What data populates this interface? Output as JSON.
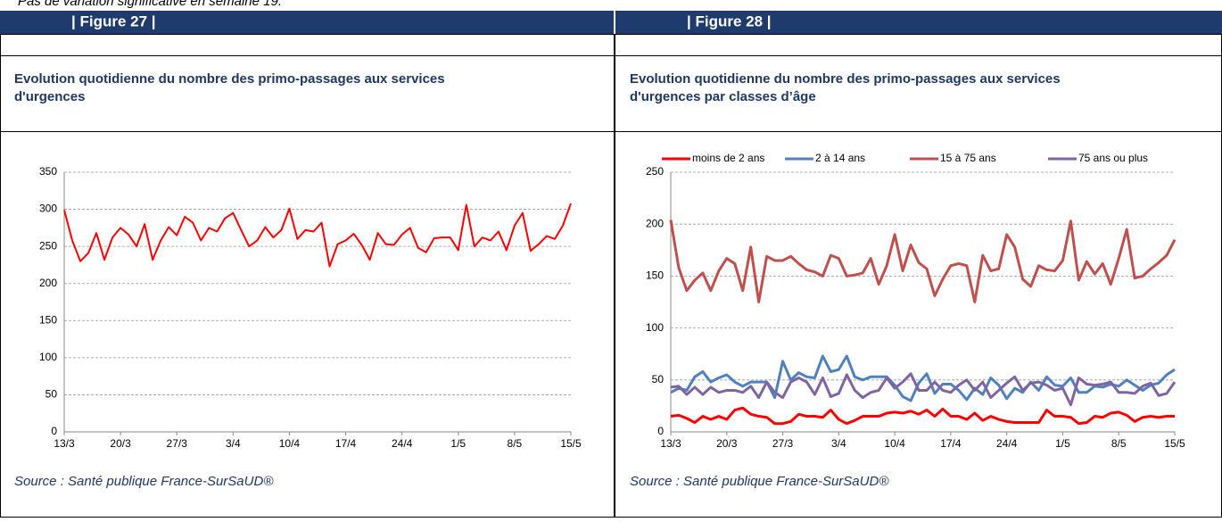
{
  "header_text": "Pas de variation significative en semaine 19.",
  "chart_data": [
    {
      "type": "line",
      "figure_label": "| Figure 27 |",
      "title": [
        "Evolution quotidienne du nombre des primo-passages aux services",
        "d'urgences"
      ],
      "source": "Source : Santé publique France-SurSaUD®",
      "categories": [
        "13/3",
        null,
        null,
        null,
        null,
        null,
        null,
        "20/3",
        null,
        null,
        null,
        null,
        null,
        null,
        "27/3",
        null,
        null,
        null,
        null,
        null,
        null,
        "3/4",
        null,
        null,
        null,
        null,
        null,
        null,
        "10/4",
        null,
        null,
        null,
        null,
        null,
        null,
        "17/4",
        null,
        null,
        null,
        null,
        null,
        null,
        "24/4",
        null,
        null,
        null,
        null,
        null,
        null,
        "1/5",
        null,
        null,
        null,
        null,
        null,
        null,
        "8/5",
        null,
        null,
        null,
        null,
        null,
        null,
        "15/5"
      ],
      "values": [
        299,
        258,
        230,
        241,
        268,
        232,
        262,
        275,
        266,
        250,
        280,
        232,
        258,
        276,
        265,
        290,
        282,
        258,
        275,
        270,
        288,
        295,
        272,
        250,
        258,
        276,
        262,
        272,
        301,
        260,
        272,
        270,
        282,
        223,
        253,
        258,
        267,
        252,
        232,
        268,
        253,
        252,
        266,
        275,
        248,
        242,
        261,
        262,
        262,
        245,
        306,
        250,
        262,
        258,
        270,
        245,
        278,
        295,
        244,
        253,
        264,
        260,
        278,
        308
      ],
      "color": "#ff0000",
      "ylim": [
        0,
        350
      ],
      "yticks": [
        0,
        50,
        100,
        150,
        200,
        250,
        300,
        350
      ],
      "grid": true
    },
    {
      "type": "line",
      "figure_label": "| Figure 28 |",
      "title": [
        "Evolution quotidienne du nombre des primo-passages aux services",
        "d'urgences  par classes d’âge"
      ],
      "source": "Source : Santé publique France-SurSaUD®",
      "categories": [
        "13/3",
        null,
        null,
        null,
        null,
        null,
        null,
        "20/3",
        null,
        null,
        null,
        null,
        null,
        null,
        "27/3",
        null,
        null,
        null,
        null,
        null,
        null,
        "3/4",
        null,
        null,
        null,
        null,
        null,
        null,
        "10/4",
        null,
        null,
        null,
        null,
        null,
        null,
        "17/4",
        null,
        null,
        null,
        null,
        null,
        null,
        "24/4",
        null,
        null,
        null,
        null,
        null,
        null,
        "1/5",
        null,
        null,
        null,
        null,
        null,
        null,
        "8/5",
        null,
        null,
        null,
        null,
        null,
        null,
        "15/5"
      ],
      "series": [
        {
          "name": "moins de 2 ans",
          "color": "#ff0000",
          "values": [
            15,
            16,
            13,
            9,
            15,
            12,
            15,
            12,
            21,
            23,
            17,
            15,
            14,
            8,
            8,
            10,
            17,
            15,
            15,
            14,
            21,
            12,
            8,
            11,
            15,
            15,
            15,
            18,
            19,
            18,
            20,
            17,
            21,
            15,
            22,
            15,
            15,
            12,
            18,
            11,
            15,
            12,
            10,
            9,
            9,
            9,
            9,
            21,
            15,
            15,
            14,
            8,
            9,
            15,
            14,
            18,
            19,
            16,
            10,
            14,
            15,
            14,
            15,
            15
          ]
        },
        {
          "name": "2 à 14 ans",
          "color": "#4f81bd",
          "values": [
            38,
            42,
            40,
            53,
            58,
            48,
            52,
            55,
            48,
            44,
            48,
            48,
            48,
            33,
            68,
            50,
            57,
            53,
            52,
            73,
            58,
            60,
            73,
            53,
            50,
            53,
            53,
            53,
            45,
            34,
            30,
            47,
            56,
            37,
            46,
            46,
            40,
            31,
            42,
            36,
            52,
            45,
            32,
            42,
            38,
            48,
            40,
            53,
            45,
            44,
            52,
            38,
            38,
            44,
            43,
            46,
            44,
            50,
            45,
            40,
            45,
            47,
            55,
            60
          ]
        },
        {
          "name": "15 à 75 ans",
          "color": "#c0504d",
          "values": [
            204,
            158,
            136,
            146,
            153,
            136,
            155,
            167,
            162,
            136,
            178,
            125,
            169,
            165,
            165,
            169,
            162,
            156,
            154,
            150,
            170,
            167,
            150,
            151,
            153,
            167,
            142,
            160,
            190,
            155,
            180,
            163,
            157,
            131,
            147,
            160,
            162,
            160,
            125,
            170,
            155,
            157,
            190,
            178,
            147,
            140,
            160,
            156,
            155,
            165,
            203,
            146,
            164,
            152,
            162,
            142,
            167,
            195,
            148,
            150,
            157,
            163,
            170,
            185
          ]
        },
        {
          "name": "75 ans ou plus",
          "color": "#8064a2",
          "values": [
            43,
            44,
            36,
            43,
            36,
            43,
            38,
            40,
            40,
            38,
            44,
            33,
            48,
            38,
            33,
            48,
            52,
            48,
            36,
            52,
            34,
            37,
            55,
            40,
            33,
            38,
            40,
            52,
            42,
            48,
            56,
            40,
            40,
            48,
            40,
            38,
            45,
            50,
            40,
            48,
            33,
            40,
            47,
            53,
            40,
            47,
            48,
            45,
            40,
            42,
            26,
            52,
            46,
            45,
            46,
            48,
            38,
            38,
            37,
            44,
            47,
            35,
            37,
            48
          ]
        }
      ],
      "legend": "top",
      "ylim": [
        0,
        250
      ],
      "yticks": [
        0,
        50,
        100,
        150,
        200,
        250
      ],
      "grid": true
    }
  ]
}
